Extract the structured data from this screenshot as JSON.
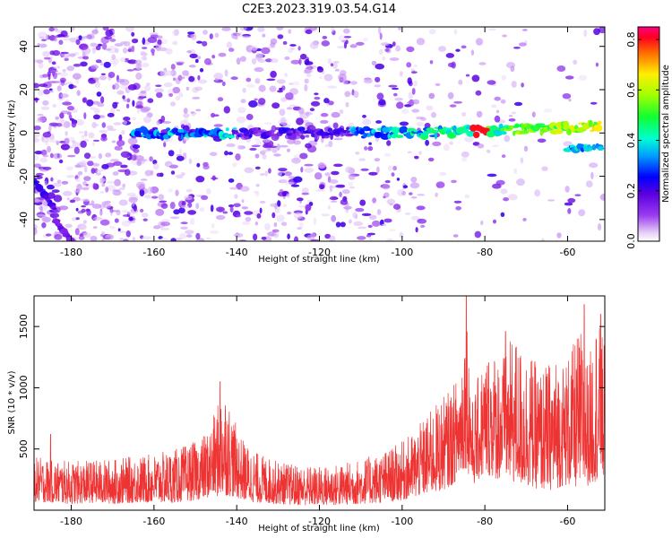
{
  "figure": {
    "title": "C2E3.2023.319.03.54.G14"
  },
  "chart_data": [
    {
      "type": "heatmap",
      "xlabel": "Height of straight line (km)",
      "ylabel": "Frequency (Hz)",
      "xlim": [
        -189,
        -51
      ],
      "ylim": [
        -50,
        49
      ],
      "xticks": [
        -180,
        -160,
        -140,
        -120,
        -100,
        -80,
        -60
      ],
      "yticks": [
        -40,
        -20,
        0,
        20,
        40
      ],
      "grid": false,
      "colorbar": {
        "label": "Normalized spectral amplitude",
        "range": [
          0,
          0.85
        ],
        "ticks": [
          0.0,
          0.2,
          0.4,
          0.6,
          0.8
        ],
        "colormap": "rainbow"
      },
      "features": [
        {
          "kind": "carrier-band",
          "x_range": [
            -165,
            -52
          ],
          "frequency_hz": 0,
          "peak_amplitude": 0.85,
          "peak_x": -81
        },
        {
          "kind": "mirror-band",
          "x_range": [
            -60,
            -52
          ],
          "frequency_hz": -7,
          "peak_amplitude": 0.45
        },
        {
          "kind": "descending-streak",
          "x_range": [
            -189,
            -184
          ],
          "frequency_hz": [
            -22,
            -35
          ],
          "peak_amplitude": 0.25
        },
        {
          "kind": "descending-streak",
          "x_range": [
            -184,
            -180
          ],
          "frequency_hz": [
            -40,
            -50
          ],
          "peak_amplitude": 0.2
        }
      ]
    },
    {
      "type": "line",
      "xlabel": "Height of straight line (km)",
      "ylabel": "SNR (10 * v/v)",
      "xlim": [
        -189,
        -51
      ],
      "ylim": [
        0,
        1750
      ],
      "xticks": [
        -180,
        -160,
        -140,
        -120,
        -100,
        -80,
        -60
      ],
      "yticks": [
        500,
        1000,
        1500
      ],
      "grid": false,
      "series_color": "#ee3333",
      "envelope": {
        "x": [
          -189,
          -185,
          -180,
          -175,
          -170,
          -165,
          -160,
          -155,
          -150,
          -147,
          -145,
          -143,
          -141,
          -139,
          -137,
          -135,
          -130,
          -125,
          -120,
          -115,
          -110,
          -105,
          -100,
          -97,
          -94,
          -91,
          -88,
          -86,
          -84.5,
          -83,
          -81,
          -79,
          -77,
          -75,
          -73,
          -71,
          -69,
          -67,
          -65,
          -63,
          -61,
          -59,
          -57,
          -55,
          -53,
          -51
        ],
        "low": [
          70,
          60,
          50,
          60,
          50,
          60,
          60,
          60,
          80,
          100,
          110,
          120,
          110,
          90,
          70,
          60,
          50,
          40,
          40,
          40,
          50,
          60,
          80,
          100,
          130,
          150,
          200,
          280,
          350,
          200,
          260,
          280,
          250,
          240,
          220,
          200,
          190,
          170,
          160,
          170,
          200,
          190,
          180,
          200,
          240,
          260
        ],
        "high": [
          440,
          420,
          400,
          410,
          420,
          440,
          460,
          500,
          560,
          650,
          820,
          1050,
          780,
          600,
          520,
          470,
          400,
          370,
          360,
          380,
          420,
          470,
          560,
          650,
          780,
          900,
          1000,
          1150,
          1750,
          900,
          1180,
          1330,
          1300,
          1280,
          1450,
          1320,
          1300,
          1150,
          1200,
          1250,
          1230,
          1320,
          1500,
          1200,
          1600,
          1350
        ],
        "spikes": [
          {
            "x": -185,
            "y": 620
          },
          {
            "x": -144,
            "y": 1050
          },
          {
            "x": -84.5,
            "y": 1750
          },
          {
            "x": -75,
            "y": 1460
          },
          {
            "x": -56,
            "y": 1680
          },
          {
            "x": -52,
            "y": 1600
          }
        ]
      }
    }
  ]
}
